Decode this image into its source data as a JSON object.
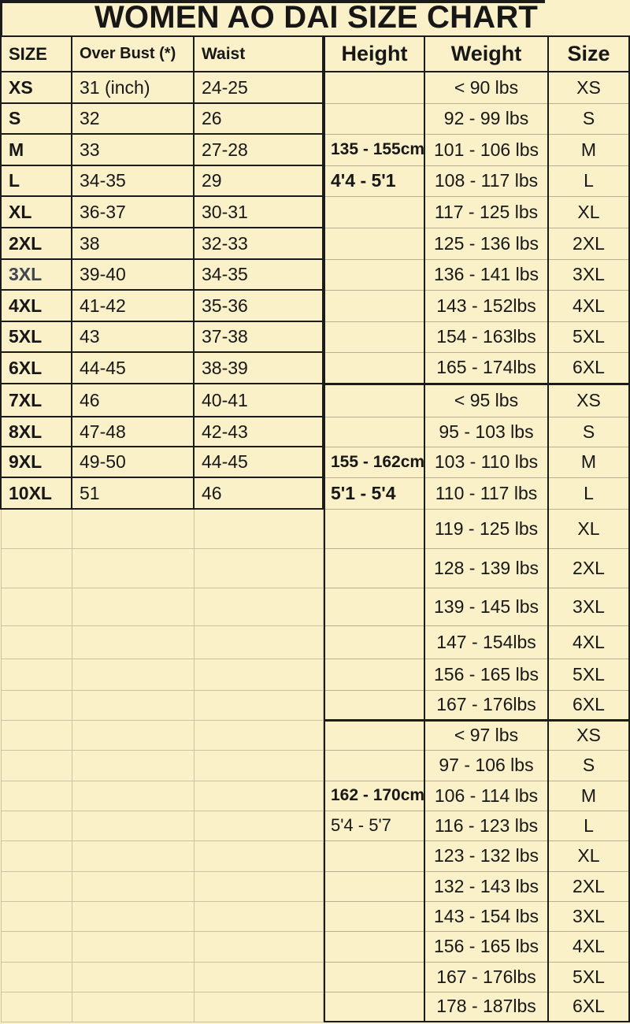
{
  "title": "WOMEN AO DAI SIZE CHART",
  "colors": {
    "background": "#FBF1C9",
    "grid_dark": "#1b1b1b",
    "grid_light_left": "#cbc2a4",
    "grid_light_right": "#b9b094"
  },
  "chart_data": [
    {
      "type": "table",
      "columns": [
        "SIZE",
        "Over Bust (*)",
        "Waist"
      ],
      "rows": [
        [
          "XS",
          "31 (inch)",
          "24-25"
        ],
        [
          "S",
          "32",
          "26"
        ],
        [
          "M",
          "33",
          "27-28"
        ],
        [
          "L",
          "34-35",
          "29"
        ],
        [
          "XL",
          "36-37",
          "30-31"
        ],
        [
          "2XL",
          "38",
          "32-33"
        ],
        [
          "3XL",
          "39-40",
          "34-35"
        ],
        [
          "4XL",
          "41-42",
          "35-36"
        ],
        [
          "5XL",
          "43",
          "37-38"
        ],
        [
          "6XL",
          "44-45",
          "38-39"
        ],
        [
          "7XL",
          "46",
          "40-41"
        ],
        [
          "8XL",
          "47-48",
          "42-43"
        ],
        [
          "9XL",
          "49-50",
          "44-45"
        ],
        [
          "10XL",
          "51",
          "46"
        ]
      ]
    },
    {
      "type": "table",
      "columns": [
        "Height",
        "Weight",
        "Size"
      ],
      "groups": [
        {
          "height_cm": "135 - 155cm",
          "height_ft": "4'4 - 5'1",
          "rows": [
            [
              "< 90 lbs",
              "XS"
            ],
            [
              "92 - 99 lbs",
              "S"
            ],
            [
              "101 - 106 lbs",
              "M"
            ],
            [
              "108 - 117 lbs",
              "L"
            ],
            [
              "117 - 125 lbs",
              "XL"
            ],
            [
              "125 - 136 lbs",
              "2XL"
            ],
            [
              "136 - 141 lbs",
              "3XL"
            ],
            [
              "143 - 152lbs",
              "4XL"
            ],
            [
              "154 - 163lbs",
              "5XL"
            ],
            [
              "165 - 174lbs",
              "6XL"
            ]
          ]
        },
        {
          "height_cm": "155 - 162cm",
          "height_ft": "5'1 - 5'4",
          "rows": [
            [
              "< 95 lbs",
              "XS"
            ],
            [
              "95 - 103 lbs",
              "S"
            ],
            [
              "103 - 110 lbs",
              "M"
            ],
            [
              "110 - 117 lbs",
              "L"
            ],
            [
              "119 - 125 lbs",
              "XL"
            ],
            [
              "128 - 139 lbs",
              "2XL"
            ],
            [
              "139 - 145 lbs",
              "3XL"
            ],
            [
              "147 - 154lbs",
              "4XL"
            ],
            [
              "156 - 165 lbs",
              "5XL"
            ],
            [
              "167 - 176lbs",
              "6XL"
            ]
          ]
        },
        {
          "height_cm": "162 - 170cm",
          "height_ft": "5'4 - 5'7",
          "rows": [
            [
              "< 97 lbs",
              "XS"
            ],
            [
              "97 - 106 lbs",
              "S"
            ],
            [
              "106 - 114 lbs",
              "M"
            ],
            [
              "116 - 123 lbs",
              "L"
            ],
            [
              "123 - 132 lbs",
              "XL"
            ],
            [
              "132 - 143 lbs",
              "2XL"
            ],
            [
              "143 - 154 lbs",
              "3XL"
            ],
            [
              "156 - 165 lbs",
              "4XL"
            ],
            [
              "167 - 176lbs",
              "5XL"
            ],
            [
              "178 - 187lbs",
              "6XL"
            ]
          ]
        }
      ]
    }
  ]
}
